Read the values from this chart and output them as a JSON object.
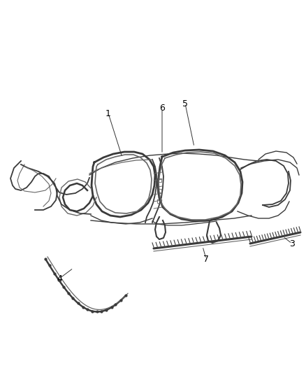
{
  "background_color": "#ffffff",
  "line_color": "#3a3a3a",
  "label_color": "#000000",
  "figsize": [
    4.38,
    5.33
  ],
  "dpi": 100,
  "label_fontsize": 9
}
